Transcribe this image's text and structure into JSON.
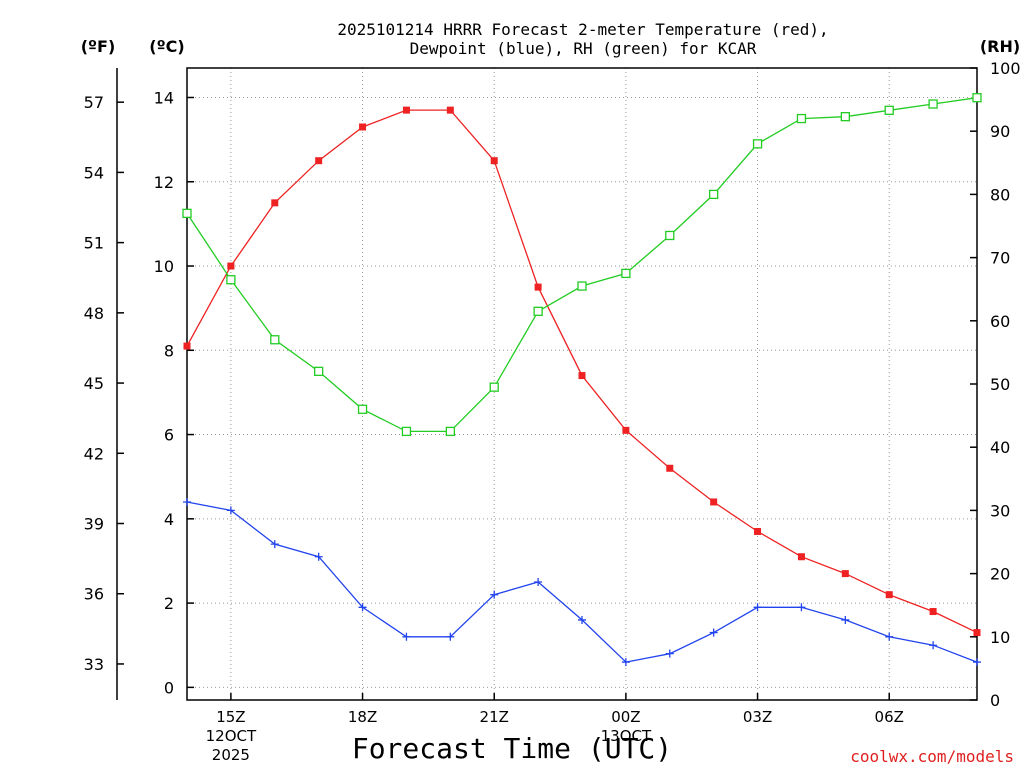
{
  "chart_data": {
    "type": "line",
    "title_line1": "2025101214 HRRR Forecast 2-meter Temperature (red),",
    "title_line2": "Dewpoint (blue), RH (green) for KCAR",
    "xlabel": "Forecast Time (UTC)",
    "credit": "coolwx.com/models",
    "units": {
      "fahrenheit": "(ºF)",
      "celsius": "(ºC)",
      "rh": "(RH)"
    },
    "x_hours": [
      14,
      15,
      16,
      17,
      18,
      19,
      20,
      21,
      22,
      23,
      24,
      25,
      26,
      27,
      28,
      29,
      30,
      31,
      32
    ],
    "xlim": [
      14,
      32
    ],
    "celsius_range": [
      -0.3,
      14.7
    ],
    "rh_range": [
      0,
      100
    ],
    "x_ticks": [
      {
        "hour": 15,
        "label": "15Z",
        "sub1": "12OCT",
        "sub2": "2025"
      },
      {
        "hour": 18,
        "label": "18Z",
        "sub1": "",
        "sub2": ""
      },
      {
        "hour": 21,
        "label": "21Z",
        "sub1": "",
        "sub2": ""
      },
      {
        "hour": 24,
        "label": "00Z",
        "sub1": "13OCT",
        "sub2": ""
      },
      {
        "hour": 27,
        "label": "03Z",
        "sub1": "",
        "sub2": ""
      },
      {
        "hour": 30,
        "label": "06Z",
        "sub1": "",
        "sub2": ""
      }
    ],
    "celsius_ticks": [
      0,
      2,
      4,
      6,
      8,
      10,
      12,
      14
    ],
    "fahrenheit_ticks": [
      33,
      36,
      39,
      42,
      45,
      48,
      51,
      54,
      57
    ],
    "rh_ticks": [
      0,
      10,
      20,
      30,
      40,
      50,
      60,
      70,
      80,
      90,
      100
    ],
    "series": [
      {
        "name": "Temperature",
        "color": "#ee2222",
        "marker": "filled-square",
        "axis": "celsius",
        "values": [
          8.1,
          10.0,
          11.5,
          12.5,
          13.3,
          13.7,
          13.7,
          12.5,
          9.5,
          7.4,
          6.1,
          5.2,
          4.4,
          3.7,
          3.1,
          2.7,
          2.2,
          1.8,
          1.3
        ]
      },
      {
        "name": "Dewpoint",
        "color": "#2244ee",
        "marker": "plus",
        "axis": "celsius",
        "values": [
          4.4,
          4.2,
          3.4,
          3.1,
          1.9,
          1.2,
          1.2,
          2.2,
          2.5,
          1.6,
          0.6,
          0.8,
          1.3,
          1.9,
          1.9,
          1.6,
          1.2,
          1.0,
          0.6
        ]
      },
      {
        "name": "RH",
        "color": "#22cc22",
        "marker": "open-square",
        "axis": "rh",
        "values": [
          77.0,
          66.5,
          57.0,
          52.0,
          46.0,
          42.5,
          42.5,
          49.5,
          61.5,
          65.5,
          67.5,
          73.5,
          80.0,
          88.0,
          92.0,
          92.3,
          93.3,
          94.3,
          95.3
        ]
      }
    ]
  }
}
